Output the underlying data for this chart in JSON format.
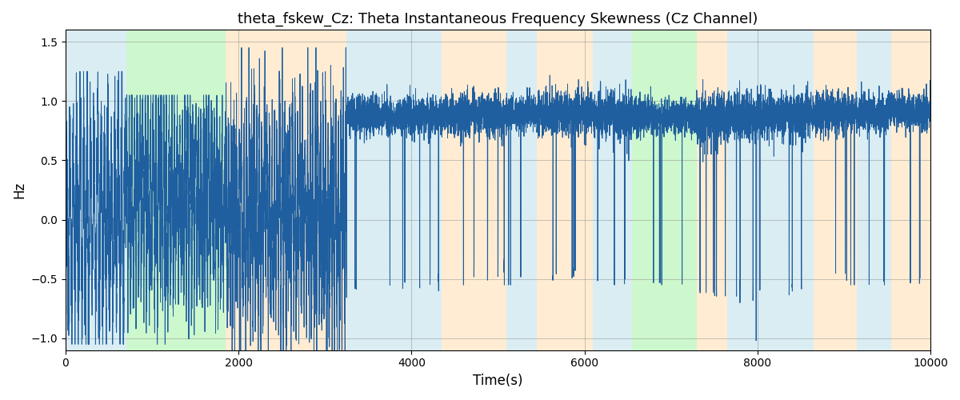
{
  "title": "theta_fskew_Cz: Theta Instantaneous Frequency Skewness (Cz Channel)",
  "xlabel": "Time(s)",
  "ylabel": "Hz",
  "xlim": [
    0,
    10000
  ],
  "ylim": [
    -1.1,
    1.6
  ],
  "yticks": [
    -1.0,
    -0.5,
    0.0,
    0.5,
    1.0,
    1.5
  ],
  "xticks": [
    0,
    2000,
    4000,
    6000,
    8000,
    10000
  ],
  "line_color": "#1f5f9f",
  "line_width": 0.7,
  "bg_regions": [
    {
      "xmin": 0,
      "xmax": 700,
      "color": "#add8e6",
      "alpha": 0.45
    },
    {
      "xmin": 700,
      "xmax": 1850,
      "color": "#90ee90",
      "alpha": 0.45
    },
    {
      "xmin": 1850,
      "xmax": 3250,
      "color": "#ffd59e",
      "alpha": 0.45
    },
    {
      "xmin": 3250,
      "xmax": 4350,
      "color": "#add8e6",
      "alpha": 0.45
    },
    {
      "xmin": 4350,
      "xmax": 5100,
      "color": "#ffd59e",
      "alpha": 0.45
    },
    {
      "xmin": 5100,
      "xmax": 5450,
      "color": "#add8e6",
      "alpha": 0.45
    },
    {
      "xmin": 5450,
      "xmax": 6100,
      "color": "#ffd59e",
      "alpha": 0.45
    },
    {
      "xmin": 6100,
      "xmax": 6550,
      "color": "#add8e6",
      "alpha": 0.45
    },
    {
      "xmin": 6550,
      "xmax": 7300,
      "color": "#90ee90",
      "alpha": 0.45
    },
    {
      "xmin": 7300,
      "xmax": 7650,
      "color": "#ffd59e",
      "alpha": 0.45
    },
    {
      "xmin": 7650,
      "xmax": 8650,
      "color": "#add8e6",
      "alpha": 0.45
    },
    {
      "xmin": 8650,
      "xmax": 9150,
      "color": "#ffd59e",
      "alpha": 0.45
    },
    {
      "xmin": 9150,
      "xmax": 9550,
      "color": "#add8e6",
      "alpha": 0.45
    },
    {
      "xmin": 9550,
      "xmax": 10000,
      "color": "#ffd59e",
      "alpha": 0.45
    }
  ],
  "figsize": [
    12.0,
    5.0
  ],
  "dpi": 100
}
